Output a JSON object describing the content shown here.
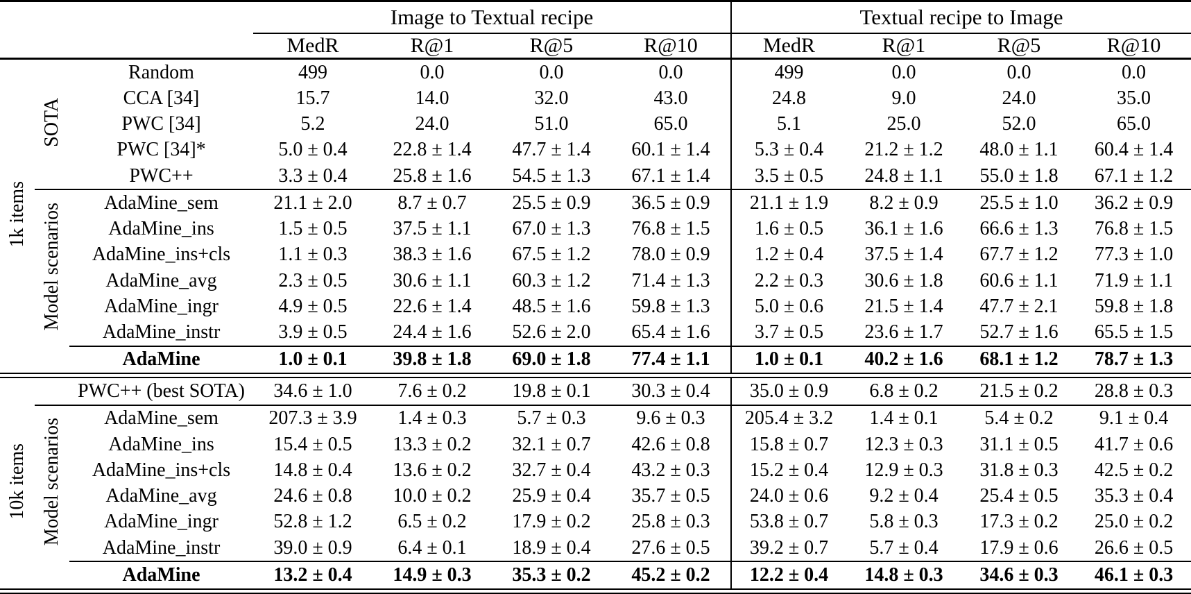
{
  "table": {
    "column_groups": [
      {
        "label": "Image to Textual recipe",
        "metrics": [
          "MedR",
          "R@1",
          "R@5",
          "R@10"
        ]
      },
      {
        "label": "Textual recipe to Image",
        "metrics": [
          "MedR",
          "R@1",
          "R@5",
          "R@10"
        ]
      }
    ],
    "sections": [
      {
        "group_label": "1k items",
        "blocks": [
          {
            "label": "SOTA",
            "rows": [
              {
                "method": "Random",
                "bold": false,
                "values": [
                  "499",
                  "0.0",
                  "0.0",
                  "0.0",
                  "499",
                  "0.0",
                  "0.0",
                  "0.0"
                ]
              },
              {
                "method": "CCA [34]",
                "bold": false,
                "values": [
                  "15.7",
                  "14.0",
                  "32.0",
                  "43.0",
                  "24.8",
                  "9.0",
                  "24.0",
                  "35.0"
                ]
              },
              {
                "method": "PWC [34]",
                "bold": false,
                "values": [
                  "5.2",
                  "24.0",
                  "51.0",
                  "65.0",
                  "5.1",
                  "25.0",
                  "52.0",
                  "65.0"
                ]
              },
              {
                "method": "PWC [34]*",
                "bold": false,
                "values": [
                  "5.0 ± 0.4",
                  "22.8 ± 1.4",
                  "47.7 ± 1.4",
                  "60.1 ± 1.4",
                  "5.3 ± 0.4",
                  "21.2 ± 1.2",
                  "48.0 ± 1.1",
                  "60.4 ± 1.4"
                ]
              },
              {
                "method": "PWC++",
                "bold": false,
                "values": [
                  "3.3 ± 0.4",
                  "25.8 ± 1.6",
                  "54.5 ± 1.3",
                  "67.1 ± 1.4",
                  "3.5 ± 0.5",
                  "24.8 ± 1.1",
                  "55.0 ± 1.8",
                  "67.1 ± 1.2"
                ]
              }
            ]
          },
          {
            "label": "Model scenarios",
            "rows": [
              {
                "method": "AdaMine_sem",
                "bold": false,
                "values": [
                  "21.1 ± 2.0",
                  "8.7 ± 0.7",
                  "25.5 ± 0.9",
                  "36.5 ± 0.9",
                  "21.1 ± 1.9",
                  "8.2 ± 0.9",
                  "25.5 ± 1.0",
                  "36.2 ± 0.9"
                ]
              },
              {
                "method": "AdaMine_ins",
                "bold": false,
                "values": [
                  "1.5 ± 0.5",
                  "37.5 ± 1.1",
                  "67.0 ± 1.3",
                  "76.8 ± 1.5",
                  "1.6 ± 0.5",
                  "36.1 ± 1.6",
                  "66.6 ± 1.3",
                  "76.8 ± 1.5"
                ]
              },
              {
                "method": "AdaMine_ins+cls",
                "bold": false,
                "values": [
                  "1.1 ± 0.3",
                  "38.3 ± 1.6",
                  "67.5 ± 1.2",
                  "78.0 ± 0.9",
                  "1.2 ± 0.4",
                  "37.5 ± 1.4",
                  "67.7 ± 1.2",
                  "77.3 ± 1.0"
                ]
              },
              {
                "method": "AdaMine_avg",
                "bold": false,
                "values": [
                  "2.3 ± 0.5",
                  "30.6 ± 1.1",
                  "60.3 ± 1.2",
                  "71.4 ± 1.3",
                  "2.2 ± 0.3",
                  "30.6 ± 1.8",
                  "60.6 ± 1.1",
                  "71.9 ± 1.1"
                ]
              },
              {
                "method": "AdaMine_ingr",
                "bold": false,
                "values": [
                  "4.9 ± 0.5",
                  "22.6 ± 1.4",
                  "48.5 ± 1.6",
                  "59.8 ± 1.3",
                  "5.0 ± 0.6",
                  "21.5 ± 1.4",
                  "47.7 ± 2.1",
                  "59.8 ± 1.8"
                ]
              },
              {
                "method": "AdaMine_instr",
                "bold": false,
                "values": [
                  "3.9 ± 0.5",
                  "24.4 ± 1.6",
                  "52.6 ± 2.0",
                  "65.4 ± 1.6",
                  "3.7 ± 0.5",
                  "23.6 ± 1.7",
                  "52.7 ± 1.6",
                  "65.5 ± 1.5"
                ]
              }
            ]
          },
          {
            "label": "",
            "rows": [
              {
                "method": "AdaMine",
                "bold": true,
                "values": [
                  "1.0 ± 0.1",
                  "39.8 ± 1.8",
                  "69.0 ± 1.8",
                  "77.4 ± 1.1",
                  "1.0 ± 0.1",
                  "40.2 ± 1.6",
                  "68.1 ± 1.2",
                  "78.7 ± 1.3"
                ]
              }
            ]
          }
        ]
      },
      {
        "group_label": "10k items",
        "blocks": [
          {
            "label": "",
            "rows": [
              {
                "method": "PWC++ (best SOTA)",
                "bold": false,
                "values": [
                  "34.6 ± 1.0",
                  "7.6 ± 0.2",
                  "19.8 ± 0.1",
                  "30.3 ± 0.4",
                  "35.0 ± 0.9",
                  "6.8 ± 0.2",
                  "21.5 ± 0.2",
                  "28.8 ± 0.3"
                ]
              }
            ]
          },
          {
            "label": "Model scenarios",
            "rows": [
              {
                "method": "AdaMine_sem",
                "bold": false,
                "values": [
                  "207.3 ± 3.9",
                  "1.4 ± 0.3",
                  "5.7 ± 0.3",
                  "9.6 ± 0.3",
                  "205.4 ± 3.2",
                  "1.4 ± 0.1",
                  "5.4 ± 0.2",
                  "9.1 ± 0.4"
                ]
              },
              {
                "method": "AdaMine_ins",
                "bold": false,
                "values": [
                  "15.4 ± 0.5",
                  "13.3 ± 0.2",
                  "32.1 ± 0.7",
                  "42.6 ± 0.8",
                  "15.8 ± 0.7",
                  "12.3 ± 0.3",
                  "31.1 ± 0.5",
                  "41.7 ± 0.6"
                ]
              },
              {
                "method": "AdaMine_ins+cls",
                "bold": false,
                "values": [
                  "14.8 ± 0.4",
                  "13.6 ± 0.2",
                  "32.7 ± 0.4",
                  "43.2 ± 0.3",
                  "15.2 ± 0.4",
                  "12.9 ± 0.3",
                  "31.8 ± 0.3",
                  "42.5 ± 0.2"
                ]
              },
              {
                "method": "AdaMine_avg",
                "bold": false,
                "values": [
                  "24.6 ± 0.8",
                  "10.0 ± 0.2",
                  "25.9 ± 0.4",
                  "35.7 ± 0.5",
                  "24.0 ± 0.6",
                  "9.2 ± 0.4",
                  "25.4 ± 0.5",
                  "35.3 ± 0.4"
                ]
              },
              {
                "method": "AdaMine_ingr",
                "bold": false,
                "values": [
                  "52.8 ± 1.2",
                  "6.5 ± 0.2",
                  "17.9 ± 0.2",
                  "25.8 ± 0.3",
                  "53.8 ± 0.7",
                  "5.8 ± 0.3",
                  "17.3 ± 0.2",
                  "25.0 ± 0.2"
                ]
              },
              {
                "method": "AdaMine_instr",
                "bold": false,
                "values": [
                  "39.0 ± 0.9",
                  "6.4 ± 0.1",
                  "18.9 ± 0.4",
                  "27.6 ± 0.5",
                  "39.2 ± 0.7",
                  "5.7 ± 0.4",
                  "17.9 ± 0.6",
                  "26.6 ± 0.5"
                ]
              }
            ]
          },
          {
            "label": "",
            "rows": [
              {
                "method": "AdaMine",
                "bold": true,
                "values": [
                  "13.2 ± 0.4",
                  "14.9 ± 0.3",
                  "35.3 ± 0.2",
                  "45.2 ± 0.2",
                  "12.2 ± 0.4",
                  "14.8 ± 0.3",
                  "34.6 ± 0.3",
                  "46.1 ± 0.3"
                ]
              }
            ]
          }
        ]
      }
    ]
  },
  "colors": {
    "text": "#000000",
    "background": "#ffffff",
    "rule": "#000000"
  }
}
